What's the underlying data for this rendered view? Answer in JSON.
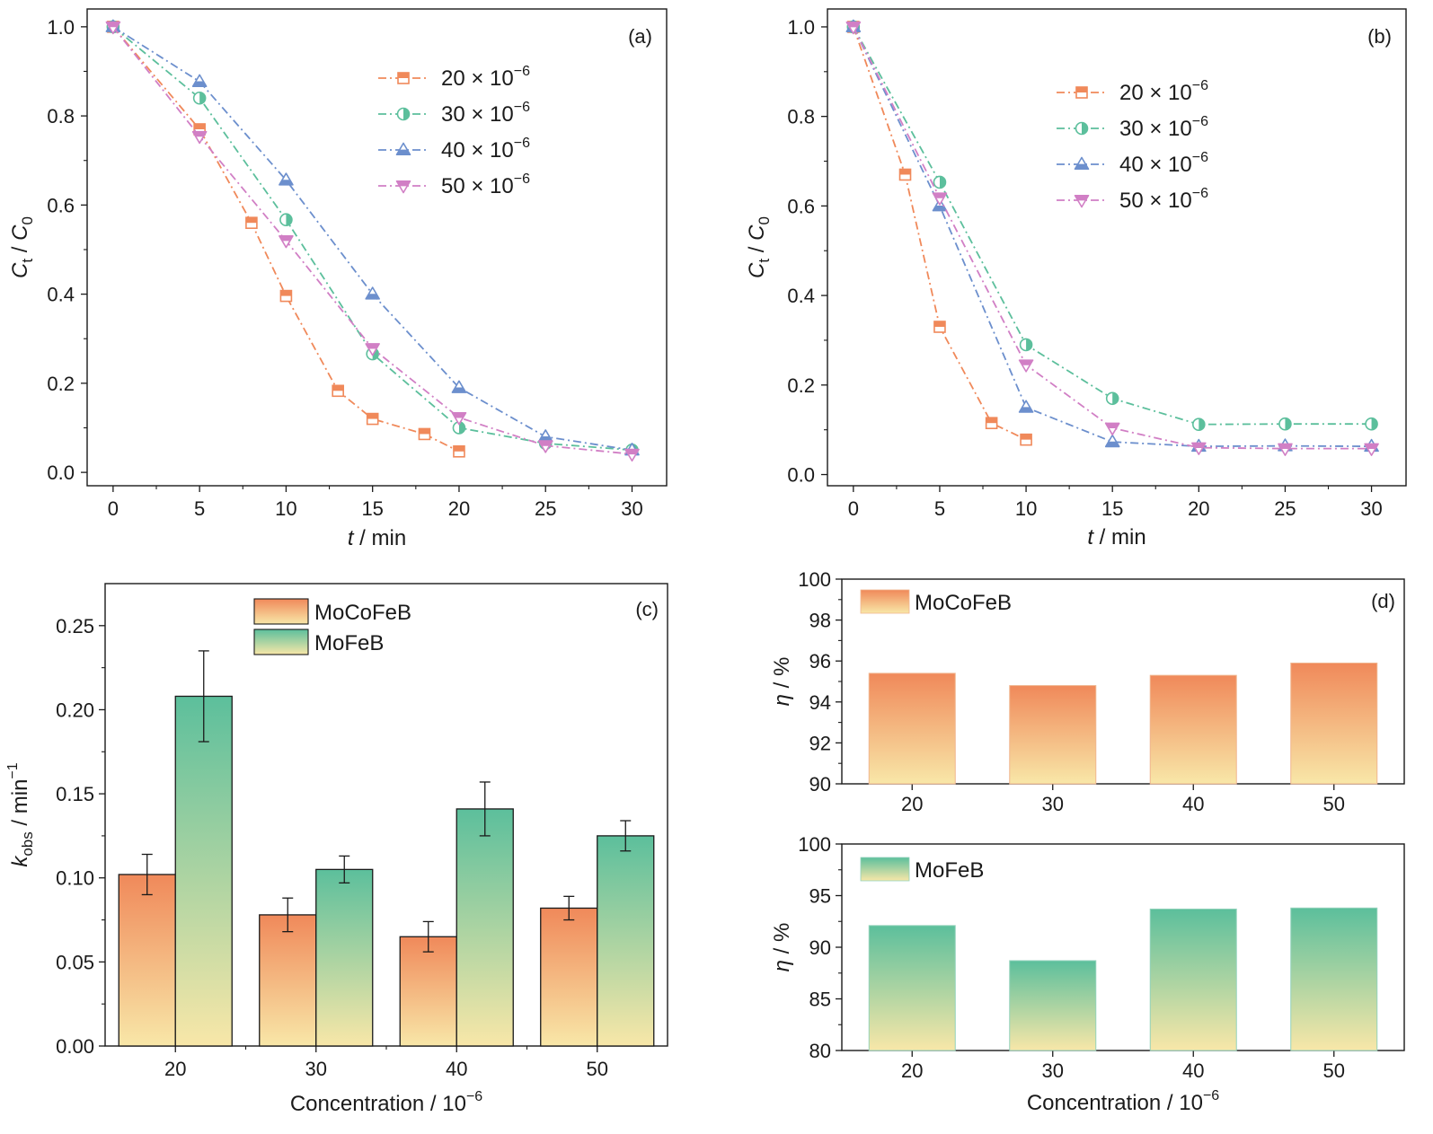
{
  "colors": {
    "orange": "#F0895A",
    "green": "#5CBF9C",
    "blue": "#6C8FCD",
    "pink": "#D17FC5",
    "cream": "#F8E7A8"
  },
  "chart_data": [
    {
      "panel": "a",
      "type": "line",
      "panel_label": "(a)",
      "xlabel_italic": "t",
      "xlabel_rest": " / min",
      "ylabel_main": "C",
      "ylabel_sub1": "t",
      "ylabel_sep": " / ",
      "ylabel_sub2": "0",
      "xlim": [
        -1.5,
        32
      ],
      "ylim": [
        -0.03,
        1.04
      ],
      "x_ticks": [
        0,
        5,
        10,
        15,
        20,
        25,
        30
      ],
      "x_tick_labels": [
        "0",
        "5",
        "10",
        "15",
        "20",
        "25",
        "30"
      ],
      "y_ticks": [
        0.0,
        0.2,
        0.4,
        0.6,
        0.8,
        1.0
      ],
      "y_tick_labels": [
        "0.0",
        "0.2",
        "0.4",
        "0.6",
        "0.8",
        "1.0"
      ],
      "legend_position": "upper-center",
      "series": [
        {
          "name": "20 × 10",
          "sup": "−6",
          "marker": "square",
          "color": "orange",
          "x": [
            0,
            5,
            8,
            10,
            13,
            15,
            18,
            20
          ],
          "y": [
            1.0,
            0.77,
            0.56,
            0.396,
            0.183,
            0.12,
            0.086,
            0.047
          ]
        },
        {
          "name": "30 × 10",
          "sup": "−6",
          "marker": "circle",
          "color": "green",
          "x": [
            0,
            5,
            10,
            15,
            20,
            25,
            30
          ],
          "y": [
            1.0,
            0.84,
            0.567,
            0.266,
            0.1,
            0.065,
            0.05
          ]
        },
        {
          "name": "40 × 10",
          "sup": "−6",
          "marker": "triangle-up",
          "color": "blue",
          "x": [
            0,
            5,
            10,
            15,
            20,
            25,
            30
          ],
          "y": [
            1.0,
            0.877,
            0.656,
            0.4,
            0.19,
            0.08,
            0.05
          ]
        },
        {
          "name": "50 × 10",
          "sup": "−6",
          "marker": "triangle-down",
          "color": "pink",
          "x": [
            0,
            5,
            10,
            15,
            20,
            25,
            30
          ],
          "y": [
            1.0,
            0.754,
            0.52,
            0.278,
            0.123,
            0.06,
            0.041
          ]
        }
      ]
    },
    {
      "panel": "b",
      "type": "line",
      "panel_label": "(b)",
      "xlabel_italic": "t",
      "xlabel_rest": " / min",
      "ylabel_main": "C",
      "ylabel_sub1": "t",
      "ylabel_sep": " / ",
      "ylabel_sub2": "0",
      "xlim": [
        -1.5,
        32
      ],
      "ylim": [
        -0.025,
        1.04
      ],
      "x_ticks": [
        0,
        5,
        10,
        15,
        20,
        25,
        30
      ],
      "x_tick_labels": [
        "0",
        "5",
        "10",
        "15",
        "20",
        "25",
        "30"
      ],
      "y_ticks": [
        0.0,
        0.2,
        0.4,
        0.6,
        0.8,
        1.0
      ],
      "y_tick_labels": [
        "0.0",
        "0.2",
        "0.4",
        "0.6",
        "0.8",
        "1.0"
      ],
      "legend_position": "upper-center",
      "series": [
        {
          "name": "20 × 10",
          "sup": "−6",
          "marker": "square",
          "color": "orange",
          "x": [
            0,
            3,
            5,
            8,
            10
          ],
          "y": [
            1.0,
            0.67,
            0.33,
            0.115,
            0.078
          ]
        },
        {
          "name": "30 × 10",
          "sup": "−6",
          "marker": "circle",
          "color": "green",
          "x": [
            0,
            5,
            10,
            15,
            20,
            25,
            30
          ],
          "y": [
            1.0,
            0.653,
            0.29,
            0.17,
            0.112,
            0.113,
            0.113
          ]
        },
        {
          "name": "40 × 10",
          "sup": "−6",
          "marker": "triangle-up",
          "color": "blue",
          "x": [
            0,
            5,
            10,
            15,
            20,
            25,
            30
          ],
          "y": [
            1.0,
            0.6,
            0.15,
            0.073,
            0.063,
            0.064,
            0.063
          ]
        },
        {
          "name": "50 × 10",
          "sup": "−6",
          "marker": "triangle-down",
          "color": "pink",
          "x": [
            0,
            5,
            10,
            15,
            20,
            25,
            30
          ],
          "y": [
            1.0,
            0.618,
            0.245,
            0.104,
            0.06,
            0.058,
            0.058
          ]
        }
      ]
    },
    {
      "panel": "c",
      "type": "bar",
      "panel_label": "(c)",
      "categories": [
        "20",
        "30",
        "40",
        "50"
      ],
      "xlabel": "Concentration / 10",
      "xlabel_sup": "−6",
      "ylabel_main": "k",
      "ylabel_sub": "obs",
      "ylabel_rest": " / min",
      "ylabel_sup": "−1",
      "ylim": [
        0,
        0.275
      ],
      "y_ticks": [
        0.0,
        0.05,
        0.1,
        0.15,
        0.2,
        0.25
      ],
      "y_tick_labels": [
        "0.00",
        "0.05",
        "0.10",
        "0.15",
        "0.20",
        "0.25"
      ],
      "legend_position": "top-center",
      "series": [
        {
          "name": "MoCoFeB",
          "color": "orange",
          "values": [
            0.102,
            0.078,
            0.065,
            0.082
          ],
          "errors": [
            0.012,
            0.01,
            0.009,
            0.007
          ]
        },
        {
          "name": "MoFeB",
          "color": "green",
          "values": [
            0.208,
            0.105,
            0.141,
            0.125
          ],
          "errors": [
            0.027,
            0.008,
            0.016,
            0.009
          ]
        }
      ]
    },
    {
      "panel": "d-top",
      "type": "bar",
      "panel_label": "(d)",
      "categories": [
        "20",
        "30",
        "40",
        "50"
      ],
      "ylabel_main": "η",
      "ylabel_rest": " / %",
      "ylim": [
        90,
        100
      ],
      "y_ticks": [
        90,
        92,
        94,
        96,
        98,
        100
      ],
      "y_tick_labels": [
        "90",
        "92",
        "94",
        "96",
        "98",
        "100"
      ],
      "legend_position": "top-left",
      "series": [
        {
          "name": "MoCoFeB",
          "color": "orange",
          "values": [
            95.4,
            94.8,
            95.3,
            95.9
          ]
        }
      ]
    },
    {
      "panel": "d-bottom",
      "type": "bar",
      "categories": [
        "20",
        "30",
        "40",
        "50"
      ],
      "xlabel": "Concentration / 10",
      "xlabel_sup": "−6",
      "ylabel_main": "η",
      "ylabel_rest": " / %",
      "ylim": [
        80,
        100
      ],
      "y_ticks": [
        80,
        85,
        90,
        95,
        100
      ],
      "y_tick_labels": [
        "80",
        "85",
        "90",
        "95",
        "100"
      ],
      "legend_position": "top-left",
      "series": [
        {
          "name": "MoFeB",
          "color": "green",
          "values": [
            92.1,
            88.7,
            93.7,
            93.8
          ]
        }
      ]
    }
  ]
}
